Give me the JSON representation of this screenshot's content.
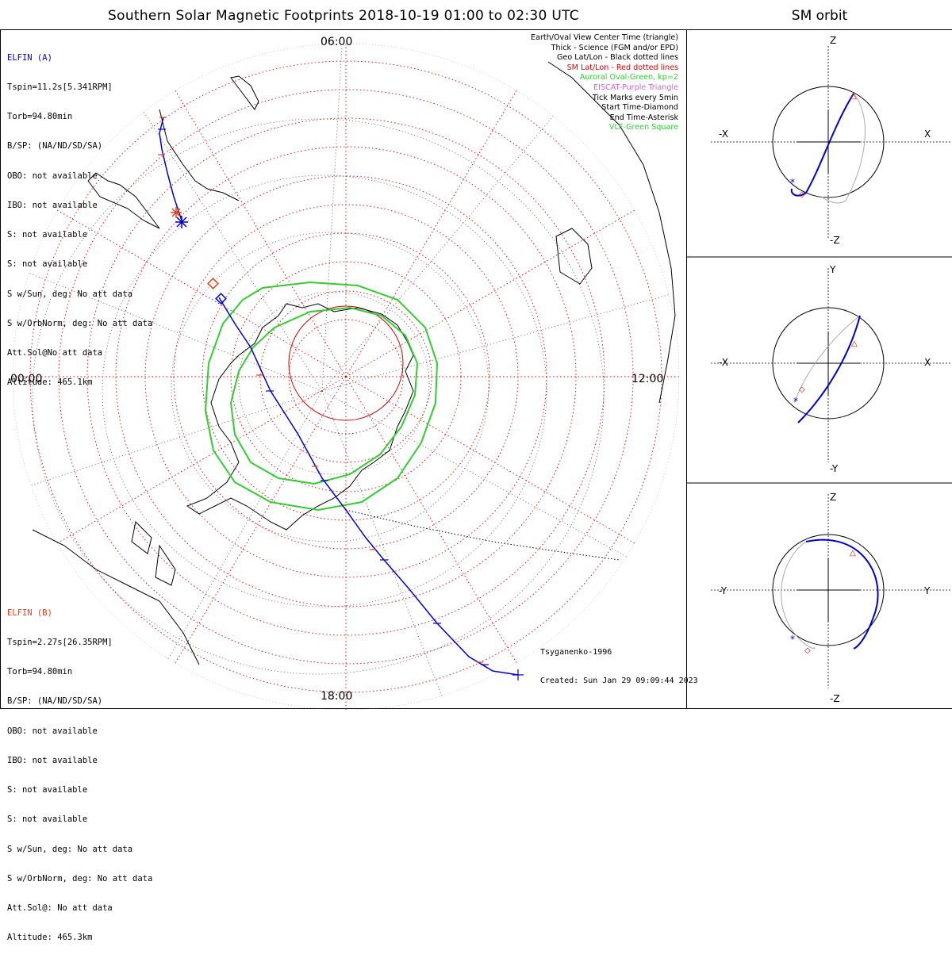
{
  "title": "Southern Solar Magnetic Footprints 2018-10-19 01:00 to 02:30 UTC",
  "orbit_title": "SM orbit",
  "colors": {
    "elfin_a": "#0000cc",
    "elfin_b": "#e0401a",
    "auroral_oval": "#33cc33",
    "sm_grid": "#dd0000",
    "geo_grid": "#000000",
    "eiscat": "#cc66cc",
    "vlf": "#33cc33"
  },
  "elfin_a": {
    "header": "ELFIN (A)",
    "lines": [
      "Tspin=11.2s[5.341RPM]",
      "Torb=94.80min",
      "B/SP: (NA/ND/SD/SA)",
      "OBO: not available",
      "IBO: not available",
      "S: not available",
      "S: not available",
      "S w/Sun, deg: No att data",
      "S w/OrbNorm, deg: No att data",
      "Att.Sol@No att data",
      "Altitude: 465.1km"
    ]
  },
  "elfin_b": {
    "header": "ELFIN (B)",
    "lines": [
      "Tspin=2.27s[26.35RPM]",
      "Torb=94.80min",
      "B/SP: (NA/ND/SD/SA)",
      "OBO: not available",
      "IBO: not available",
      "S: not available",
      "S: not available",
      "S w/Sun, deg: No att data",
      "S w/OrbNorm, deg: No att data",
      "Att.Sol@: No att data",
      "Altitude: 465.3km"
    ]
  },
  "legend": [
    {
      "text": "Earth/Oval View Center Time (triangle)",
      "color": "#000000"
    },
    {
      "text": "Thick - Science (FGM and/or EPD)",
      "color": "#000000"
    },
    {
      "text": "Geo Lat/Lon - Black dotted lines",
      "color": "#000000"
    },
    {
      "text": "SM Lat/Lon - Red dotted lines",
      "color": "#dd0000"
    },
    {
      "text": "Auroral Oval-Green, kp=2",
      "color": "#33cc33"
    },
    {
      "text": "EISCAT-Purple Triangle",
      "color": "#cc66cc"
    },
    {
      "text": "Tick Marks every 5min",
      "color": "#000000"
    },
    {
      "text": "Start Time-Diamond",
      "color": "#000000"
    },
    {
      "text": "End Time-Asterisk",
      "color": "#000000"
    },
    {
      "text": "VLF-Green Square",
      "color": "#33cc33"
    }
  ],
  "mlt_labels": {
    "top": "06:00",
    "left": "00:00",
    "right": "12:00",
    "bottom": "18:00"
  },
  "footer": {
    "model": "Tsyganenko-1996",
    "created": "Created: Sun Jan 29 09:09:44 2023"
  },
  "orbit_panels": [
    {
      "top": "Z",
      "bottom": "-Z",
      "left": "-X",
      "right": "X"
    },
    {
      "top": "Y",
      "bottom": "-Y",
      "left": "-X",
      "right": "X"
    },
    {
      "top": "Z",
      "bottom": "-Z",
      "left": "-Y",
      "right": "Y"
    }
  ]
}
